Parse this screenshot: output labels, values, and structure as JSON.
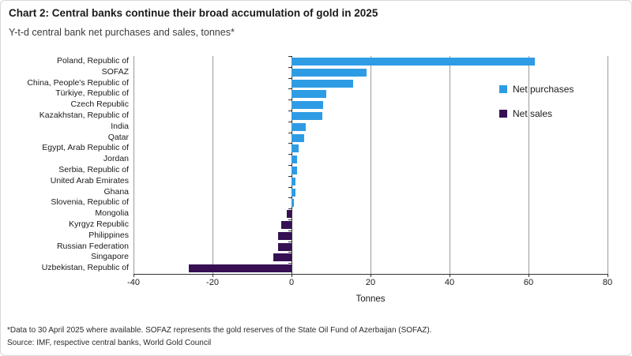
{
  "header": {
    "title": "Chart 2: Central banks continue their broad accumulation of gold in 2025",
    "subtitle": "Y-t-d central bank net purchases and sales, tonnes*"
  },
  "legend": {
    "purchases": "Net purchases",
    "sales": "Net sales"
  },
  "colors": {
    "purchases": "#2E9CE5",
    "sales": "#371053",
    "gridline": "#9A9A9A",
    "axis": "#333333"
  },
  "chart_data": {
    "type": "bar",
    "orientation": "horizontal",
    "title": "Chart 2: Central banks continue their broad accumulation of gold in 2025",
    "subtitle": "Y-t-d central bank net purchases and sales, tonnes*",
    "xlabel": "Tonnes",
    "xlim": [
      -40,
      80
    ],
    "xticks": [
      -40,
      -20,
      0,
      20,
      40,
      60,
      80
    ],
    "grid": "vertical",
    "legend_position": "upper-right-inside",
    "legend_entries": [
      "Net purchases",
      "Net sales"
    ],
    "categories": [
      "Poland, Republic of",
      "SOFAZ",
      "China, People's Republic of",
      "Türkiye, Republic of",
      "Czech Republic",
      "Kazakhstan, Republic of",
      "India",
      "Qatar",
      "Egypt, Arab Republic of",
      "Jordan",
      "Serbia, Republic of",
      "United Arab Emirates",
      "Ghana",
      "Slovenia, Republic of",
      "Mongolia",
      "Kyrgyz Republic",
      "Philippines",
      "Russian Federation",
      "Singapore",
      "Uzbekistan, Republic of"
    ],
    "values": [
      61.5,
      19,
      15.5,
      8.7,
      8,
      7.7,
      3.6,
      3.1,
      1.8,
      1.3,
      1.3,
      1,
      0.9,
      0.6,
      -1.2,
      -2.6,
      -3.4,
      -3.4,
      -4.6,
      -26
    ],
    "series_rule": "positive values = Net purchases (blue), negative values = Net sales (dark purple)"
  },
  "footnote": {
    "line1": "*Data to 30 April 2025 where available. SOFAZ represents the gold reserves of the State Oil Fund of Azerbaijan (SOFAZ).",
    "line2": "Source: IMF, respective central banks, World Gold Council"
  }
}
